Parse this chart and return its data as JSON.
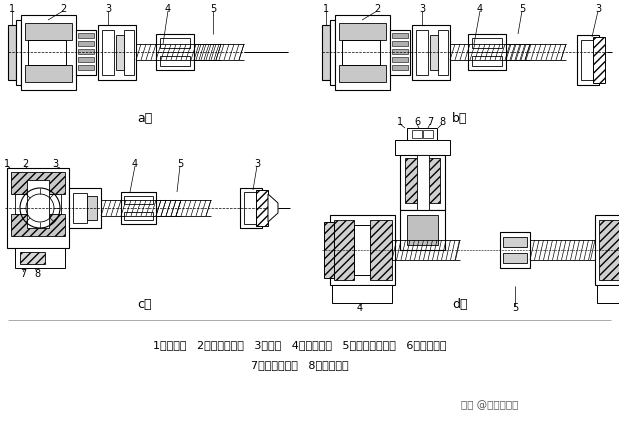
{
  "bg_color": "#ffffff",
  "text_color": "#000000",
  "legend_line1": "1－电动机   2－弹性联轴器   3－轴承   4－滚珠丝杠   5－滚珠丝杠螺母   6－同步带轮",
  "legend_line2": "7－弹性脆紧套   8－锁紧螺钉",
  "watermark": "头条 @哈思孟小袁",
  "label_a": "a）",
  "label_b": "b）",
  "label_c": "c）",
  "label_d": "d）",
  "fig_width": 6.19,
  "fig_height": 4.29,
  "dpi": 100
}
